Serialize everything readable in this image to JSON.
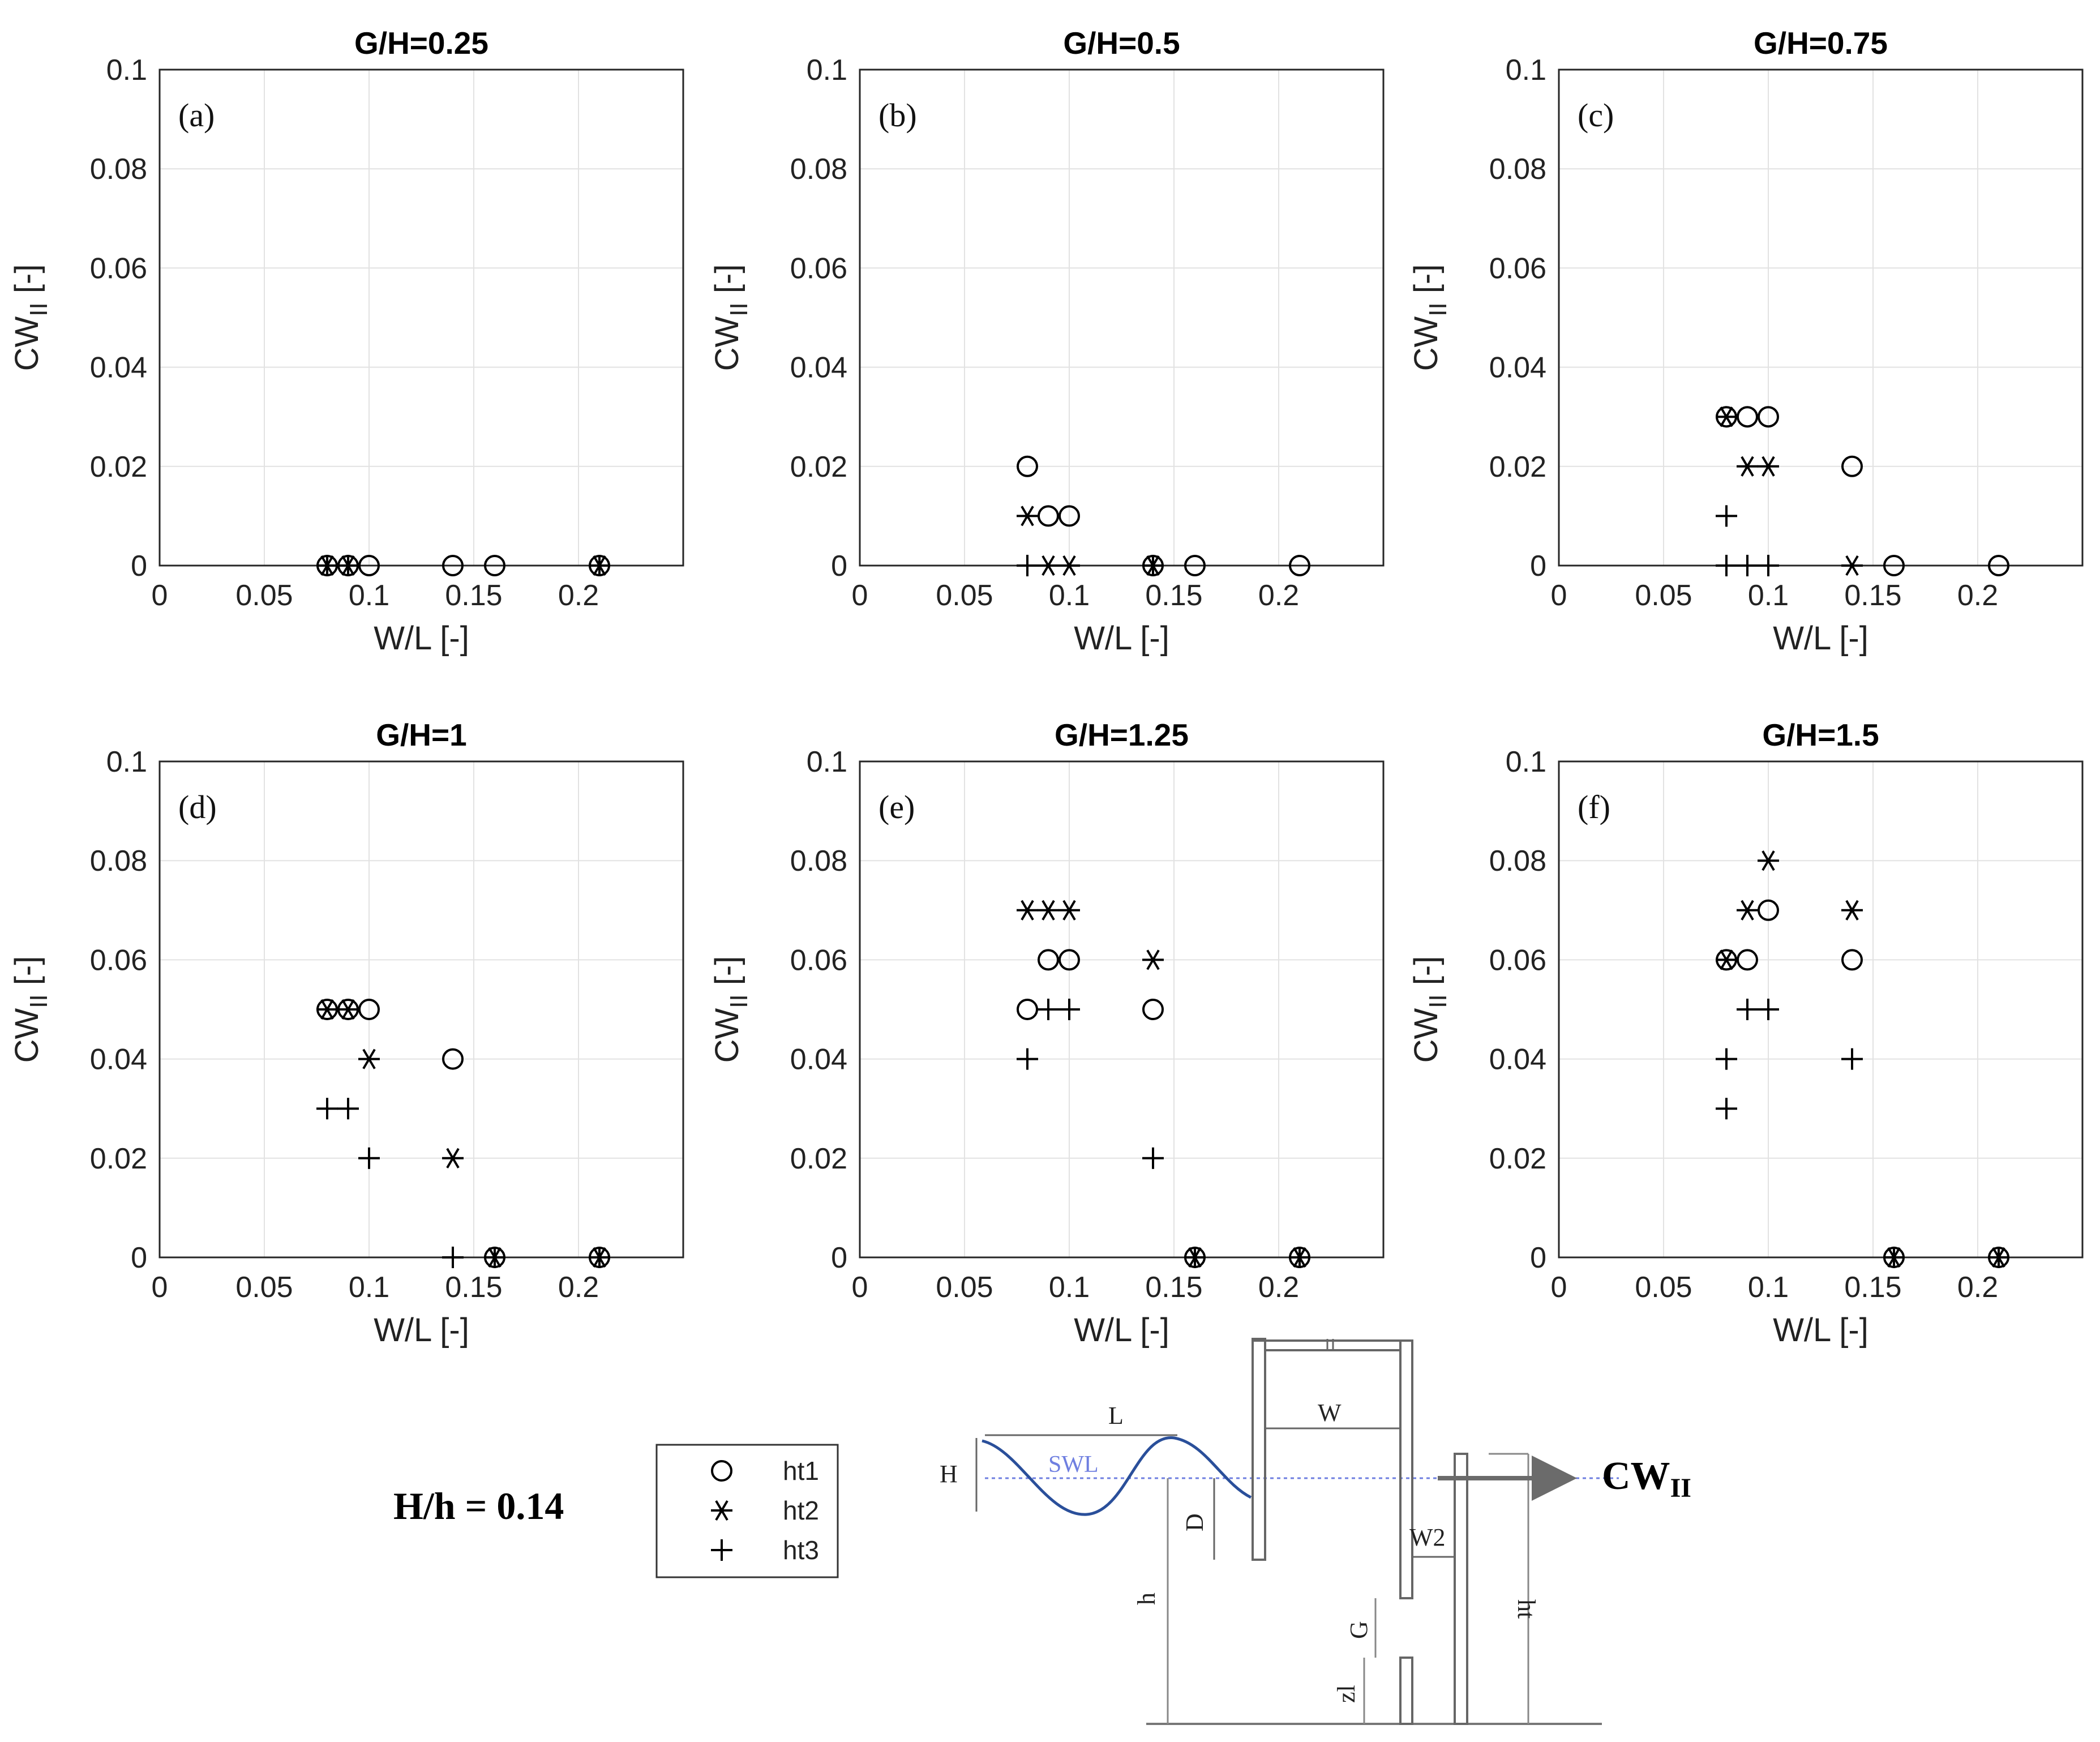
{
  "chart_data": [
    {
      "type": "scatter",
      "title": "G/H=0.25",
      "panel_label": "(a)",
      "xlabel": "W/L [-]",
      "ylabel": "CW",
      "ylabel_sub": "II",
      "ylabel_unit": " [-]",
      "xlim": [
        0,
        0.25
      ],
      "ylim": [
        0,
        0.1
      ],
      "xticks": [
        "0",
        "0.05",
        "0.1",
        "0.15",
        "0.2"
      ],
      "yticks": [
        "0",
        "0.02",
        "0.04",
        "0.06",
        "0.08",
        "0.1"
      ],
      "series": [
        {
          "name": "ht1",
          "points": [
            [
              0.08,
              0
            ],
            [
              0.09,
              0
            ],
            [
              0.1,
              0
            ],
            [
              0.14,
              0
            ],
            [
              0.16,
              0
            ],
            [
              0.21,
              0
            ]
          ]
        },
        {
          "name": "ht2",
          "points": [
            [
              0.08,
              0
            ],
            [
              0.09,
              0
            ],
            [
              0.21,
              0
            ]
          ]
        },
        {
          "name": "ht3",
          "points": [
            [
              0.08,
              0
            ],
            [
              0.09,
              0
            ],
            [
              0.21,
              0
            ]
          ]
        }
      ]
    },
    {
      "type": "scatter",
      "title": "G/H=0.5",
      "panel_label": "(b)",
      "xlabel": "W/L [-]",
      "ylabel": "CW",
      "ylabel_sub": "II",
      "ylabel_unit": " [-]",
      "xlim": [
        0,
        0.25
      ],
      "ylim": [
        0,
        0.1
      ],
      "xticks": [
        "0",
        "0.05",
        "0.1",
        "0.15",
        "0.2"
      ],
      "yticks": [
        "0",
        "0.02",
        "0.04",
        "0.06",
        "0.08",
        "0.1"
      ],
      "series": [
        {
          "name": "ht1",
          "points": [
            [
              0.08,
              0.02
            ],
            [
              0.09,
              0.01
            ],
            [
              0.1,
              0.01
            ],
            [
              0.14,
              0
            ],
            [
              0.16,
              0
            ],
            [
              0.21,
              0
            ]
          ]
        },
        {
          "name": "ht2",
          "points": [
            [
              0.08,
              0.01
            ],
            [
              0.09,
              0
            ],
            [
              0.1,
              0
            ],
            [
              0.14,
              0
            ]
          ]
        },
        {
          "name": "ht3",
          "points": [
            [
              0.08,
              0
            ],
            [
              0.14,
              0
            ]
          ]
        }
      ]
    },
    {
      "type": "scatter",
      "title": "G/H=0.75",
      "panel_label": "(c)",
      "xlabel": "W/L [-]",
      "ylabel": "CW",
      "ylabel_sub": "II",
      "ylabel_unit": " [-]",
      "xlim": [
        0,
        0.25
      ],
      "ylim": [
        0,
        0.1
      ],
      "xticks": [
        "0",
        "0.05",
        "0.1",
        "0.15",
        "0.2"
      ],
      "yticks": [
        "0",
        "0.02",
        "0.04",
        "0.06",
        "0.08",
        "0.1"
      ],
      "series": [
        {
          "name": "ht1",
          "points": [
            [
              0.08,
              0.03
            ],
            [
              0.09,
              0.03
            ],
            [
              0.1,
              0.03
            ],
            [
              0.14,
              0.02
            ],
            [
              0.16,
              0
            ],
            [
              0.21,
              0
            ]
          ]
        },
        {
          "name": "ht2",
          "points": [
            [
              0.08,
              0.03
            ],
            [
              0.09,
              0.02
            ],
            [
              0.1,
              0.02
            ],
            [
              0.14,
              0
            ]
          ]
        },
        {
          "name": "ht3",
          "points": [
            [
              0.08,
              0.01
            ],
            [
              0.08,
              0
            ],
            [
              0.09,
              0
            ],
            [
              0.1,
              0
            ]
          ]
        }
      ]
    },
    {
      "type": "scatter",
      "title": "G/H=1",
      "panel_label": "(d)",
      "xlabel": "W/L [-]",
      "ylabel": "CW",
      "ylabel_sub": "II",
      "ylabel_unit": " [-]",
      "xlim": [
        0,
        0.25
      ],
      "ylim": [
        0,
        0.1
      ],
      "xticks": [
        "0",
        "0.05",
        "0.1",
        "0.15",
        "0.2"
      ],
      "yticks": [
        "0",
        "0.02",
        "0.04",
        "0.06",
        "0.08",
        "0.1"
      ],
      "series": [
        {
          "name": "ht1",
          "points": [
            [
              0.08,
              0.05
            ],
            [
              0.09,
              0.05
            ],
            [
              0.1,
              0.05
            ],
            [
              0.14,
              0.04
            ],
            [
              0.16,
              0
            ],
            [
              0.21,
              0
            ]
          ]
        },
        {
          "name": "ht2",
          "points": [
            [
              0.08,
              0.05
            ],
            [
              0.09,
              0.05
            ],
            [
              0.1,
              0.04
            ],
            [
              0.14,
              0.02
            ],
            [
              0.16,
              0
            ],
            [
              0.21,
              0
            ]
          ]
        },
        {
          "name": "ht3",
          "points": [
            [
              0.08,
              0.03
            ],
            [
              0.09,
              0.03
            ],
            [
              0.1,
              0.02
            ],
            [
              0.14,
              0
            ],
            [
              0.16,
              0
            ],
            [
              0.21,
              0
            ]
          ]
        }
      ]
    },
    {
      "type": "scatter",
      "title": "G/H=1.25",
      "panel_label": "(e)",
      "xlabel": "W/L [-]",
      "ylabel": "CW",
      "ylabel_sub": "II",
      "ylabel_unit": " [-]",
      "xlim": [
        0,
        0.25
      ],
      "ylim": [
        0,
        0.1
      ],
      "xticks": [
        "0",
        "0.05",
        "0.1",
        "0.15",
        "0.2"
      ],
      "yticks": [
        "0",
        "0.02",
        "0.04",
        "0.06",
        "0.08",
        "0.1"
      ],
      "series": [
        {
          "name": "ht1",
          "points": [
            [
              0.08,
              0.05
            ],
            [
              0.09,
              0.06
            ],
            [
              0.1,
              0.06
            ],
            [
              0.14,
              0.05
            ],
            [
              0.16,
              0
            ],
            [
              0.21,
              0
            ]
          ]
        },
        {
          "name": "ht2",
          "points": [
            [
              0.08,
              0.07
            ],
            [
              0.09,
              0.07
            ],
            [
              0.1,
              0.07
            ],
            [
              0.14,
              0.06
            ],
            [
              0.16,
              0
            ],
            [
              0.21,
              0
            ]
          ]
        },
        {
          "name": "ht3",
          "points": [
            [
              0.08,
              0.04
            ],
            [
              0.09,
              0.05
            ],
            [
              0.1,
              0.05
            ],
            [
              0.14,
              0.02
            ],
            [
              0.16,
              0
            ],
            [
              0.21,
              0
            ]
          ]
        }
      ]
    },
    {
      "type": "scatter",
      "title": "G/H=1.5",
      "panel_label": "(f)",
      "xlabel": "W/L [-]",
      "ylabel": "CW",
      "ylabel_sub": "II",
      "ylabel_unit": " [-]",
      "xlim": [
        0,
        0.25
      ],
      "ylim": [
        0,
        0.1
      ],
      "xticks": [
        "0",
        "0.05",
        "0.1",
        "0.15",
        "0.2"
      ],
      "yticks": [
        "0",
        "0.02",
        "0.04",
        "0.06",
        "0.08",
        "0.1"
      ],
      "series": [
        {
          "name": "ht1",
          "points": [
            [
              0.08,
              0.06
            ],
            [
              0.09,
              0.06
            ],
            [
              0.1,
              0.07
            ],
            [
              0.14,
              0.06
            ],
            [
              0.16,
              0
            ],
            [
              0.21,
              0
            ]
          ]
        },
        {
          "name": "ht2",
          "points": [
            [
              0.08,
              0.06
            ],
            [
              0.09,
              0.07
            ],
            [
              0.1,
              0.08
            ],
            [
              0.14,
              0.07
            ],
            [
              0.16,
              0
            ],
            [
              0.21,
              0
            ]
          ]
        },
        {
          "name": "ht3",
          "points": [
            [
              0.08,
              0.04
            ],
            [
              0.08,
              0.03
            ],
            [
              0.09,
              0.05
            ],
            [
              0.1,
              0.05
            ],
            [
              0.14,
              0.04
            ],
            [
              0.16,
              0
            ],
            [
              0.21,
              0
            ]
          ]
        }
      ]
    }
  ],
  "legend": {
    "items": [
      {
        "label": "ht1",
        "marker": "circle"
      },
      {
        "label": "ht2",
        "marker": "asterisk"
      },
      {
        "label": "ht3",
        "marker": "plus"
      }
    ]
  },
  "annotation": {
    "text": "H/h = 0.14"
  },
  "diagram": {
    "labels": {
      "L": "L",
      "W": "W",
      "H": "H",
      "SWL": "SWL",
      "D": "D",
      "W2": "W2",
      "h": "h",
      "ht": "ht",
      "G": "G",
      "zl": "zl"
    },
    "output_main": "CW",
    "output_sub": "II",
    "colors": {
      "wave": "#2a4f9a",
      "swl_line": "#6f7fe0",
      "arrow": "#6b6b6b"
    }
  }
}
